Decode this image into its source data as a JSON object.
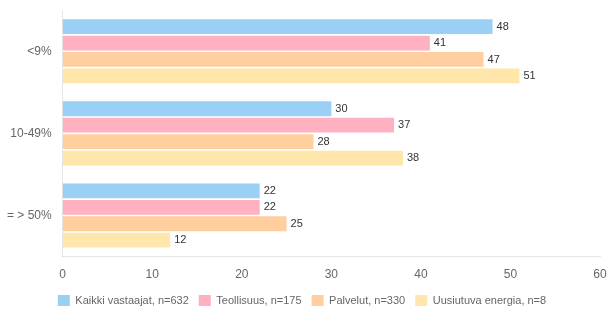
{
  "chart_data": {
    "type": "bar",
    "orientation": "horizontal",
    "categories": [
      "<9%",
      "10-49%",
      "= > 50%"
    ],
    "series": [
      {
        "name": "Kaikki vastaajat, n=632",
        "values": [
          48,
          30,
          22
        ]
      },
      {
        "name": "Teollisuus, n=175",
        "values": [
          41,
          37,
          22
        ]
      },
      {
        "name": "Palvelut, n=330",
        "values": [
          47,
          28,
          25
        ]
      },
      {
        "name": "Uusiutuva energia, n=8",
        "values": [
          51,
          38,
          12
        ]
      }
    ],
    "xlim": [
      0,
      60
    ],
    "xticks": [
      0,
      10,
      20,
      30,
      40,
      50,
      60
    ],
    "grid": false,
    "legend": "bottom",
    "data_labels": true
  }
}
